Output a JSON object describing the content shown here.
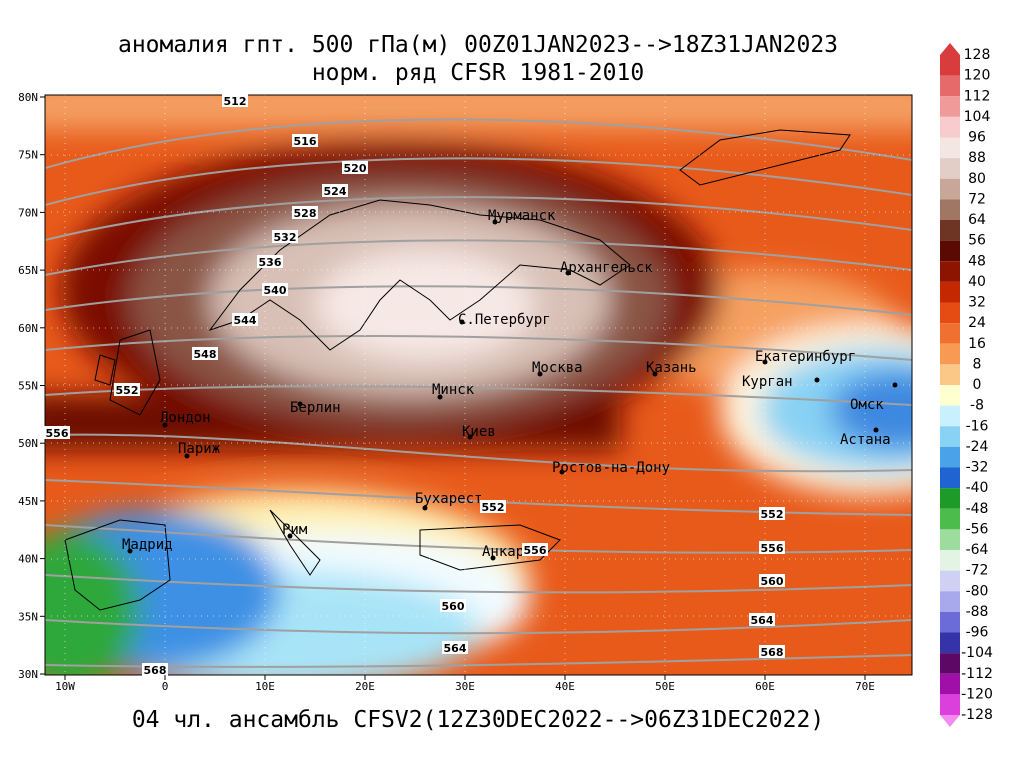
{
  "title": "аномалия гпт. 500 гПа(м) 00Z01JAN2023-->18Z31JAN2023",
  "subtitle": "норм. ряд CFSR 1981-2010",
  "footer": "04 чл. ансамбль CFSV2(12Z30DEC2022-->06Z31DEC2022)",
  "lon_labels": [
    "10W",
    "0",
    "10E",
    "20E",
    "30E",
    "40E",
    "50E",
    "60E",
    "70E"
  ],
  "lat_labels": [
    "80N",
    "75N",
    "70N",
    "65N",
    "60N",
    "55N",
    "50N",
    "45N",
    "40N",
    "35N",
    "30N"
  ],
  "cities": [
    "Мурманск",
    "Архангельск",
    "С.Петербург",
    "Москва",
    "Казань",
    "Екатеринбург",
    "Курган",
    "Омск",
    "Астана",
    "Минск",
    "Берлин",
    "Лондон",
    "Париж",
    "Киев",
    "Ростов-на-Дону",
    "Бухарест",
    "Рим",
    "Мадрид",
    "Анкара"
  ],
  "contour_labels": [
    512,
    516,
    520,
    524,
    528,
    532,
    536,
    540,
    544,
    548,
    552,
    556,
    552,
    556,
    560,
    564,
    568,
    552,
    556,
    560,
    564,
    568
  ],
  "colorbar": {
    "labels": [
      128,
      120,
      112,
      104,
      96,
      88,
      80,
      72,
      64,
      56,
      48,
      40,
      32,
      24,
      16,
      8,
      0,
      -8,
      -16,
      -24,
      -32,
      -40,
      -48,
      -56,
      -64,
      -72,
      -80,
      -88,
      -96,
      -104,
      -112,
      -120,
      -128
    ],
    "colors": [
      "#d83c3c",
      "#e66a6a",
      "#f09a9a",
      "#f8cccc",
      "#f4e6e2",
      "#e2cec6",
      "#c8a698",
      "#a07664",
      "#6e3424",
      "#5a0a00",
      "#8c1400",
      "#c42800",
      "#e44c14",
      "#f07030",
      "#f89a54",
      "#fcc888",
      "#ffffd0",
      "#c8f0ff",
      "#88d2f4",
      "#4aa2e8",
      "#2064d2",
      "#1e9a28",
      "#4cbc4c",
      "#9cdc9c",
      "#e4f4e4",
      "#d0d0f4",
      "#a8a8ec",
      "#6c6cd8",
      "#3434a8",
      "#5c0864",
      "#a010a8",
      "#dc40dc",
      "#f28cf2"
    ]
  }
}
